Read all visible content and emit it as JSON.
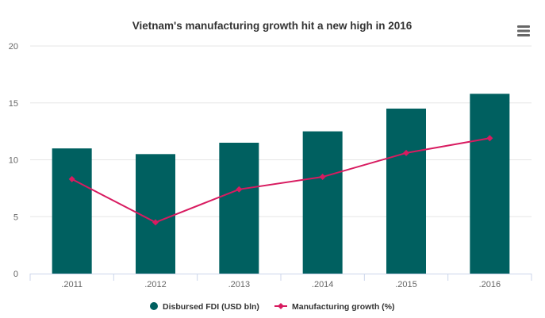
{
  "chart_data": {
    "type": "bar",
    "title": "Vietnam's manufacturing growth hit a new high in 2016",
    "categories": [
      ".2011",
      ".2012",
      ".2013",
      ".2014",
      ".2015",
      ".2016"
    ],
    "series": [
      {
        "name": "Disbursed FDI (USD bln)",
        "type": "bar",
        "color": "#006060",
        "values": [
          11.0,
          10.5,
          11.5,
          12.5,
          14.5,
          15.8
        ]
      },
      {
        "name": "Manufacturing growth (%)",
        "type": "line",
        "color": "#d81b60",
        "values": [
          8.3,
          4.5,
          7.4,
          8.5,
          10.6,
          11.9
        ]
      }
    ],
    "ylim": [
      0,
      20
    ],
    "yticks": [
      0,
      5,
      10,
      15,
      20
    ],
    "grid": true,
    "legend_position": "bottom-center"
  },
  "menu_icon": "hamburger-menu-icon"
}
